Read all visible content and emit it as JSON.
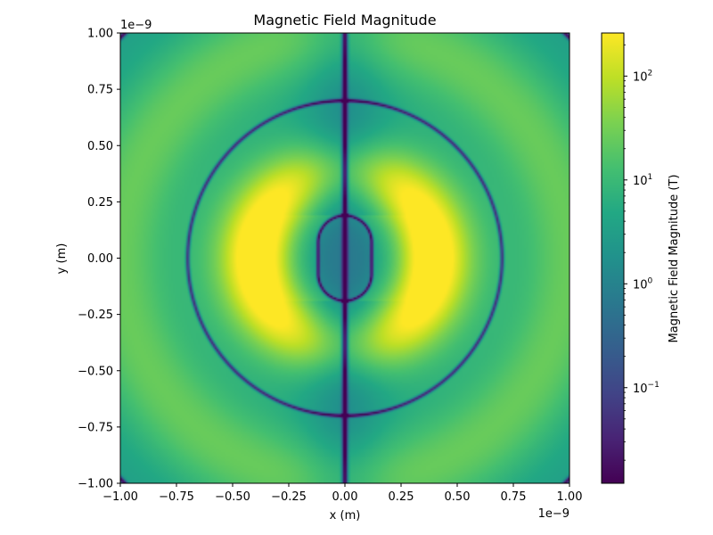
{
  "chart_data": {
    "type": "heatmap",
    "title": "Magnetic Field Magnitude",
    "xlabel": "x (m)",
    "ylabel": "y (m)",
    "x_offset_label": "1e−9",
    "y_offset_label": "1e−9",
    "xlim": [
      -1.0,
      1.0
    ],
    "ylim": [
      -1.0,
      1.0
    ],
    "x_ticks": [
      {
        "value": -1.0,
        "label": "−1.00"
      },
      {
        "value": -0.75,
        "label": "−0.75"
      },
      {
        "value": -0.5,
        "label": "−0.50"
      },
      {
        "value": -0.25,
        "label": "−0.25"
      },
      {
        "value": 0.0,
        "label": "0.00"
      },
      {
        "value": 0.25,
        "label": "0.25"
      },
      {
        "value": 0.5,
        "label": "0.50"
      },
      {
        "value": 0.75,
        "label": "0.75"
      },
      {
        "value": 1.0,
        "label": "1.00"
      }
    ],
    "y_ticks": [
      {
        "value": -1.0,
        "label": "−1.00"
      },
      {
        "value": -0.75,
        "label": "−0.75"
      },
      {
        "value": -0.5,
        "label": "−0.50"
      },
      {
        "value": -0.25,
        "label": "−0.25"
      },
      {
        "value": 0.0,
        "label": "0.00"
      },
      {
        "value": 0.25,
        "label": "0.25"
      },
      {
        "value": 0.5,
        "label": "0.50"
      },
      {
        "value": 0.75,
        "label": "0.75"
      },
      {
        "value": 1.0,
        "label": "1.00"
      }
    ],
    "colorbar": {
      "label": "Magnetic Field Magnitude (T)",
      "colormap": "viridis",
      "scale": "log",
      "range": [
        0.012,
        260
      ],
      "major_ticks": [
        {
          "value": 0.1,
          "base": "10",
          "exp": "−1"
        },
        {
          "value": 1,
          "base": "10",
          "exp": "0"
        },
        {
          "value": 10,
          "base": "10",
          "exp": "1"
        },
        {
          "value": 100,
          "base": "10",
          "exp": "2"
        }
      ]
    },
    "features": {
      "low_field_circles_radius": [
        0.7,
        1.4
      ],
      "inner_loop_half_height": 0.19,
      "inner_loop_half_width": 0.12,
      "central_axis_x": 0.0
    }
  }
}
